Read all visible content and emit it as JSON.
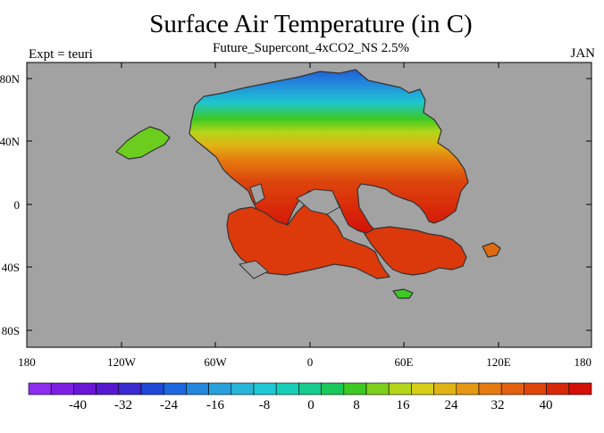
{
  "title": "Surface Air Temperature (in C)",
  "subtitle": "Future_Supercont_4xCO2_NS 2.5%",
  "left_label": "Expt = teuri",
  "right_label": "JAN",
  "colors": {
    "ocean": "#a2a2a2",
    "background": "#ffffff",
    "coast": "#333333"
  },
  "latitude_ticks": [
    "80N",
    "40N",
    "0",
    "40S",
    "80S"
  ],
  "longitude_ticks": [
    "180",
    "120W",
    "60W",
    "0",
    "60E",
    "120E",
    "180"
  ],
  "colorbar": {
    "labels": [
      "-40",
      "-32",
      "-24",
      "-16",
      "-8",
      "0",
      "8",
      "16",
      "24",
      "32",
      "40"
    ],
    "colors": [
      "#8d2df0",
      "#7f1fe6",
      "#6a16d8",
      "#5518cf",
      "#3a2ad0",
      "#1f48d8",
      "#1d68e0",
      "#2387de",
      "#27a1dc",
      "#28b6d8",
      "#1dc8d4",
      "#17cfb8",
      "#16cc8e",
      "#19c85a",
      "#3cc923",
      "#7dcf1c",
      "#b5d51a",
      "#d6cf16",
      "#e0b414",
      "#e49712",
      "#e57b10",
      "#e2600e",
      "#dd450c",
      "#d8280a",
      "#d41009"
    ]
  }
}
